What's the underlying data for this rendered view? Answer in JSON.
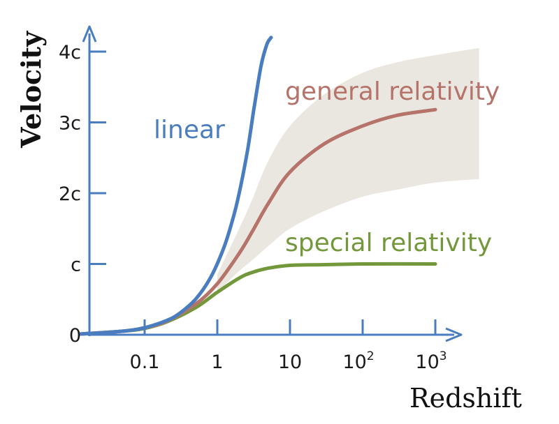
{
  "chart_data": {
    "type": "line",
    "xlabel": "Redshift",
    "ylabel": "Velocity",
    "x_scale": "log",
    "x_ticks": [
      {
        "value": 0.1,
        "base": "0.1",
        "exp": ""
      },
      {
        "value": 1,
        "base": "1",
        "exp": ""
      },
      {
        "value": 10,
        "base": "10",
        "exp": ""
      },
      {
        "value": 100,
        "base": "10",
        "exp": "2"
      },
      {
        "value": 1000,
        "base": "10",
        "exp": "3"
      }
    ],
    "y_ticks": [
      {
        "value": 0,
        "label": "0"
      },
      {
        "value": 1,
        "label": "c"
      },
      {
        "value": 2,
        "label": "2c"
      },
      {
        "value": 3,
        "label": "3c"
      },
      {
        "value": 4,
        "label": "4c"
      }
    ],
    "xlim": [
      0.013,
      4000
    ],
    "ylim": [
      0,
      4.3
    ],
    "grid": false,
    "series": [
      {
        "name": "linear",
        "color": "#4a7dc0",
        "x": [
          0.013,
          0.05,
          0.1,
          0.2,
          0.3,
          0.5,
          0.8,
          1.2,
          1.6,
          2,
          2.6,
          3.2,
          4,
          4.8,
          5.5
        ],
        "y": [
          0.01,
          0.05,
          0.1,
          0.2,
          0.3,
          0.5,
          0.8,
          1.2,
          1.6,
          2.0,
          2.6,
          3.2,
          3.8,
          4.1,
          4.2
        ]
      },
      {
        "name": "general relativity",
        "color": "#b5736a",
        "x": [
          0.013,
          0.05,
          0.1,
          0.2,
          0.5,
          1,
          2,
          3,
          5,
          10,
          30,
          100,
          300,
          1000
        ],
        "y": [
          0.01,
          0.05,
          0.1,
          0.19,
          0.43,
          0.72,
          1.15,
          1.45,
          1.85,
          2.3,
          2.7,
          2.95,
          3.1,
          3.18
        ]
      },
      {
        "name": "special relativity",
        "color": "#72983b",
        "x": [
          0.013,
          0.05,
          0.1,
          0.2,
          0.5,
          1,
          2,
          3,
          5,
          10,
          30,
          100,
          1000
        ],
        "y": [
          0.01,
          0.05,
          0.09,
          0.18,
          0.38,
          0.6,
          0.8,
          0.88,
          0.94,
          0.98,
          0.99,
          1.0,
          1.0
        ]
      }
    ],
    "band": {
      "color": "#eae6e0",
      "x": [
        1,
        2,
        3,
        5,
        10,
        30,
        100,
        300,
        1000,
        4000
      ],
      "upper": [
        0.85,
        1.5,
        1.9,
        2.45,
        2.95,
        3.4,
        3.7,
        3.85,
        3.95,
        4.05
      ],
      "lower": [
        0.6,
        0.9,
        1.05,
        1.25,
        1.5,
        1.75,
        1.95,
        2.05,
        2.15,
        2.2
      ]
    }
  }
}
